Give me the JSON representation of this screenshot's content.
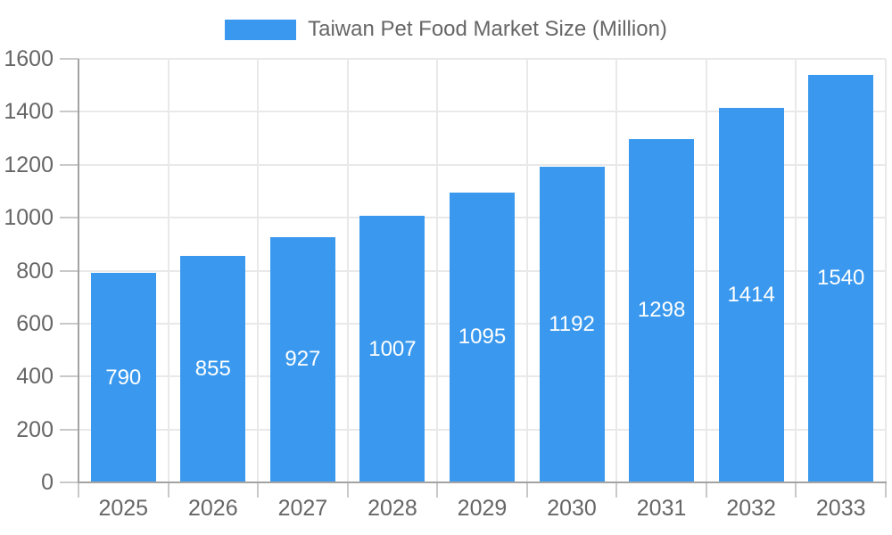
{
  "chart_data": {
    "type": "bar",
    "title": "Taiwan Pet Food Market Size (Million)",
    "categories": [
      "2025",
      "2026",
      "2027",
      "2028",
      "2029",
      "2030",
      "2031",
      "2032",
      "2033"
    ],
    "values": [
      790,
      855,
      927,
      1007,
      1095,
      1192,
      1298,
      1414,
      1540
    ],
    "xlabel": "",
    "ylabel": "",
    "ylim": [
      0,
      1600
    ],
    "yticks": [
      0,
      200,
      400,
      600,
      800,
      1000,
      1200,
      1400,
      1600
    ],
    "ytick_labels": [
      "0",
      "200",
      "400",
      "600",
      "800",
      "1000",
      "1200",
      "1400",
      "1600"
    ],
    "grid": true,
    "legend_position": "top-center",
    "bar_value_label_position": "center-inside",
    "colors": {
      "bar": "#3A99EE",
      "bar_value_label": "#FFFFFF",
      "axis_text": "#666666",
      "legend_text": "#666666",
      "grid_line": "#E9E9E9",
      "axis_line": "#A3A3A3",
      "tick_mark": "#C9C9C9",
      "background": "#FFFFFF"
    }
  }
}
